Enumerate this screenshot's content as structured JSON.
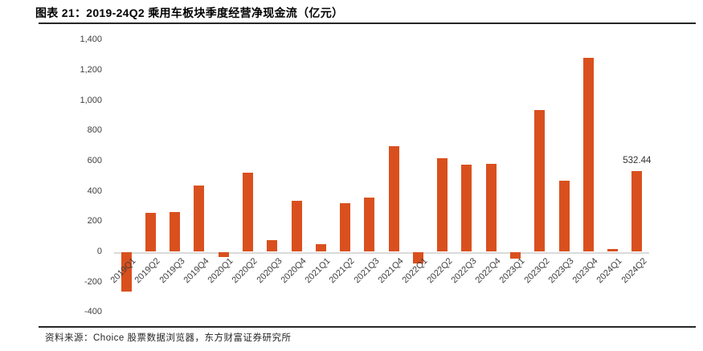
{
  "header": {
    "title": "图表 21：2019-24Q2 乘用车板块季度经营净现金流（亿元）"
  },
  "footer": {
    "source": "资料来源：Choice 股票数据浏览器，东方财富证券研究所"
  },
  "chart_data": {
    "type": "bar",
    "title": "图表 21：2019-24Q2 乘用车板块季度经营净现金流（亿元）",
    "unit": "亿元",
    "categories": [
      "2019Q1",
      "2019Q2",
      "2019Q3",
      "2019Q4",
      "2020Q1",
      "2020Q2",
      "2020Q3",
      "2020Q4",
      "2021Q1",
      "2021Q2",
      "2021Q3",
      "2021Q4",
      "2022Q1",
      "2022Q2",
      "2022Q3",
      "2022Q4",
      "2023Q1",
      "2023Q2",
      "2023Q3",
      "2023Q4",
      "2024Q1",
      "2024Q2"
    ],
    "values": [
      -260,
      258,
      260,
      440,
      -32,
      520,
      75,
      337,
      50,
      320,
      358,
      700,
      -78,
      620,
      576,
      581,
      -45,
      935,
      472,
      1283,
      17,
      532.44
    ],
    "ylim": [
      -400,
      1400
    ],
    "y_tick_step": 200,
    "y_tick_labels": [
      "1,400",
      "1,200",
      "1,000",
      "800",
      "600",
      "400",
      "200",
      "0",
      "-200",
      "-400"
    ],
    "xlabel": "",
    "ylabel": "",
    "grid": false,
    "legend_position": "none",
    "bar_color": "#D9501E",
    "axis_line_color": "#D9D9D9",
    "annotation": {
      "text": "532.44",
      "category": "2024Q2",
      "value": 532.44
    }
  }
}
